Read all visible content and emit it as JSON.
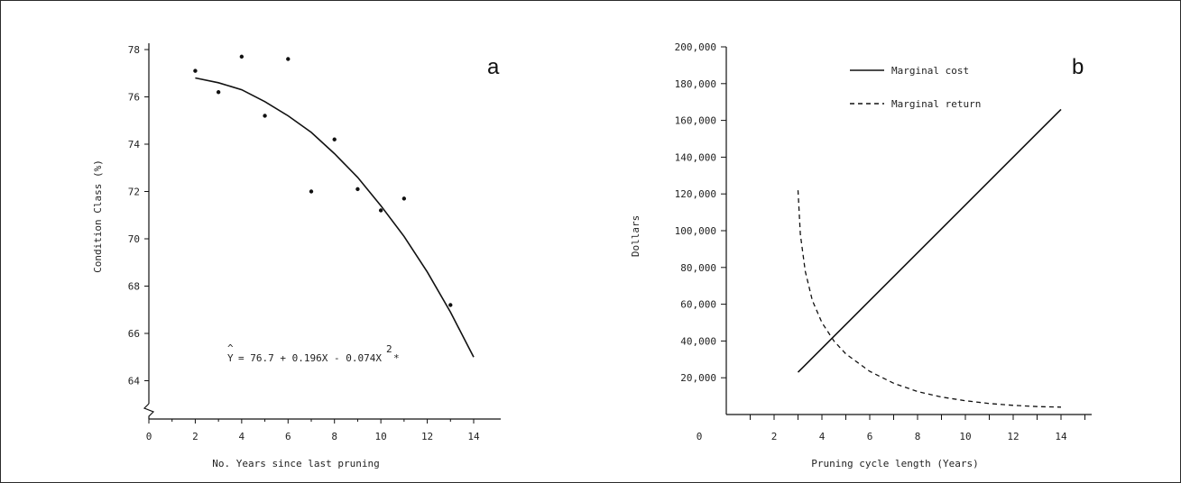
{
  "chart_data": [
    {
      "panel": "a",
      "type": "scatter",
      "xlabel": "No. Years since last pruning",
      "ylabel": "Condition Class (%)",
      "xlim": [
        0,
        14
      ],
      "ylim": [
        63,
        78
      ],
      "x_ticks": [
        0,
        2,
        4,
        6,
        8,
        10,
        12,
        14
      ],
      "y_ticks": [
        64,
        66,
        68,
        70,
        72,
        74,
        76,
        78
      ],
      "axis_break": true,
      "points": [
        {
          "x": 2,
          "y": 77.1
        },
        {
          "x": 3,
          "y": 76.2
        },
        {
          "x": 4,
          "y": 77.7
        },
        {
          "x": 5,
          "y": 75.2
        },
        {
          "x": 6,
          "y": 77.6
        },
        {
          "x": 7,
          "y": 72.0
        },
        {
          "x": 8,
          "y": 74.2
        },
        {
          "x": 9,
          "y": 72.1
        },
        {
          "x": 10,
          "y": 71.2
        },
        {
          "x": 11,
          "y": 71.7
        },
        {
          "x": 13,
          "y": 67.2
        }
      ],
      "fit_curve": {
        "x": [
          2,
          3,
          4,
          5,
          6,
          7,
          8,
          9,
          10,
          11,
          12,
          13,
          14
        ],
        "y": [
          76.8,
          76.6,
          76.3,
          75.8,
          75.2,
          74.5,
          73.6,
          72.6,
          71.4,
          70.1,
          68.6,
          66.9,
          65.0
        ]
      },
      "equation": {
        "yhat": "Y",
        "hat": "^",
        "body": "= 76.7 + 0.196X - 0.074X",
        "exp": "2",
        "suffix": "*"
      }
    },
    {
      "panel": "b",
      "type": "line",
      "xlabel": "Pruning cycle length (Years)",
      "ylabel": "Dollars",
      "xlim": [
        0,
        15
      ],
      "ylim": [
        0,
        200000
      ],
      "x_ticks": [
        0,
        2,
        4,
        6,
        8,
        10,
        12,
        14
      ],
      "y_ticks": [
        {
          "v": 20000,
          "label": "20,000"
        },
        {
          "v": 40000,
          "label": "40,000"
        },
        {
          "v": 60000,
          "label": "60,000"
        },
        {
          "v": 80000,
          "label": "80,000"
        },
        {
          "v": 100000,
          "label": "100,000"
        },
        {
          "v": 120000,
          "label": "120,000"
        },
        {
          "v": 140000,
          "label": "140,000"
        },
        {
          "v": 160000,
          "label": "160,000"
        },
        {
          "v": 180000,
          "label": "180,000"
        },
        {
          "v": 200000,
          "label": "200,000"
        }
      ],
      "legend_position": "top-center",
      "series": [
        {
          "name": "Marginal cost",
          "style": "solid",
          "x": [
            3,
            14
          ],
          "y": [
            23000,
            166000
          ]
        },
        {
          "name": "Marginal return",
          "style": "dashed",
          "x": [
            3,
            3.1,
            3.3,
            3.6,
            4,
            4.5,
            5,
            6,
            7,
            8,
            9,
            10,
            11,
            12,
            13,
            14
          ],
          "y": [
            122000,
            98000,
            78000,
            62000,
            50000,
            40000,
            33000,
            23500,
            17000,
            12500,
            9500,
            7500,
            6000,
            5000,
            4300,
            4000
          ]
        }
      ]
    }
  ]
}
